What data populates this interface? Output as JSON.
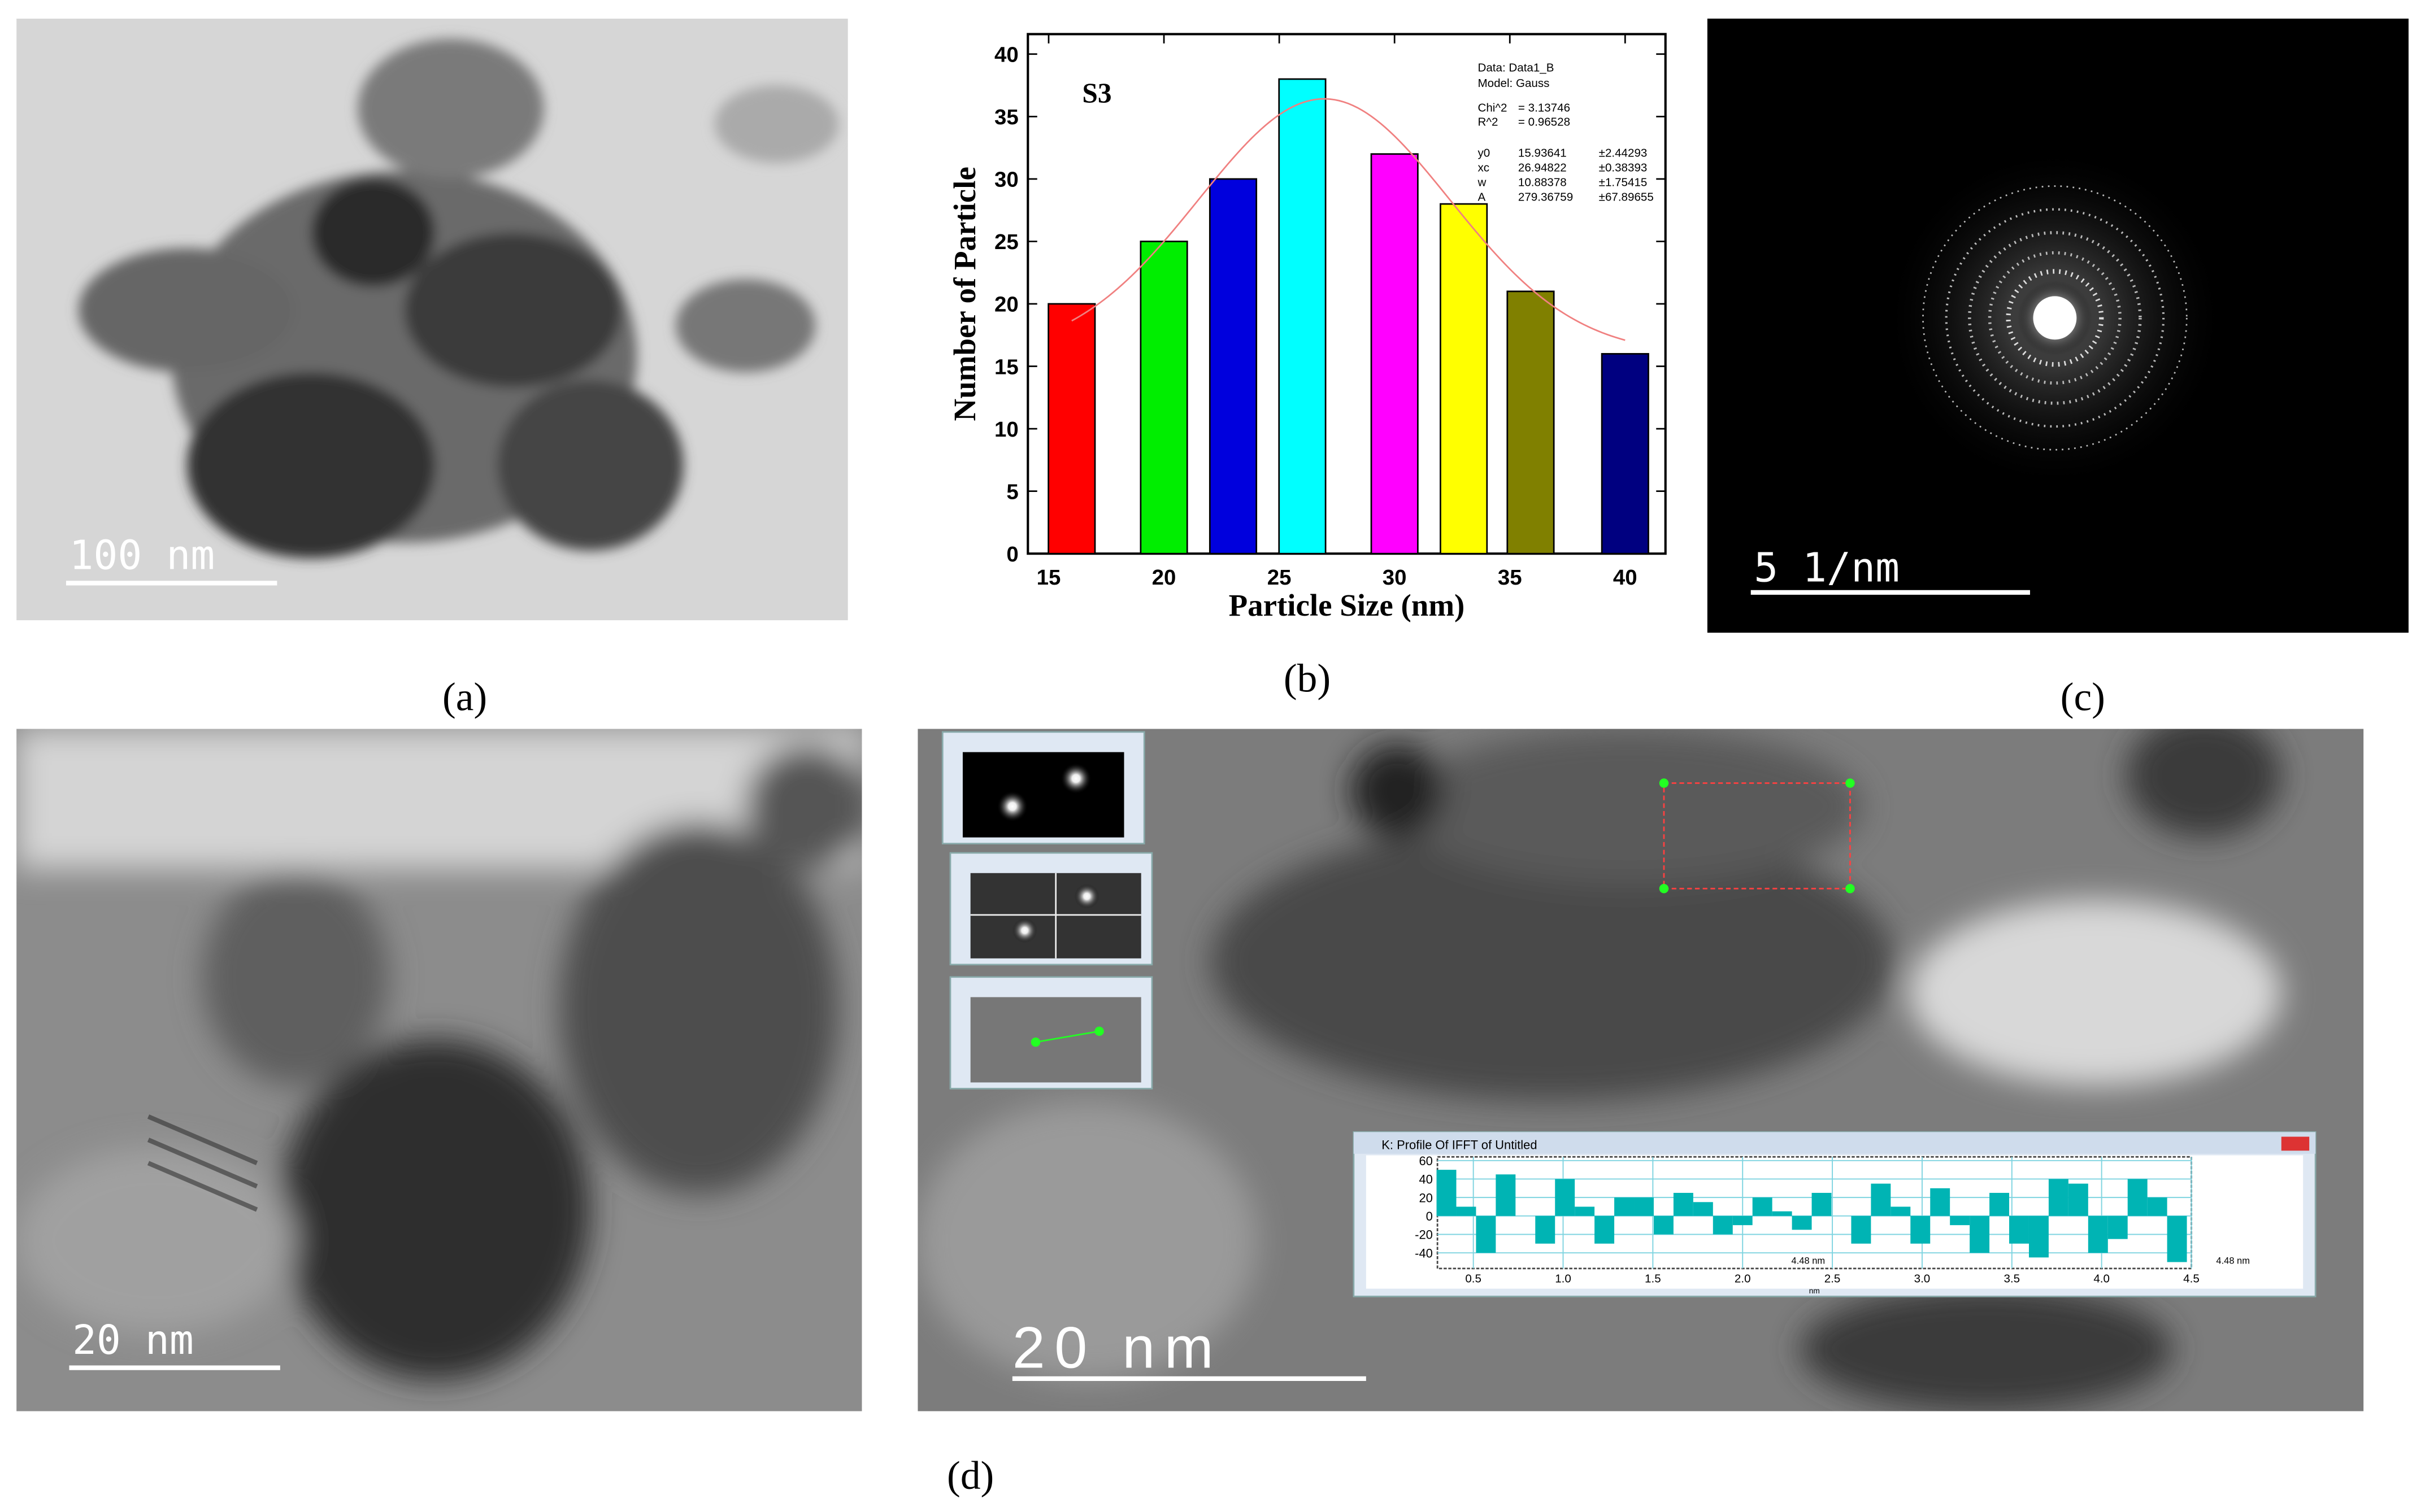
{
  "panels": {
    "a": {
      "label": "(a)",
      "scale_bar": "100 nm"
    },
    "b": {
      "label": "(b)"
    },
    "c": {
      "label": "(c)",
      "scale_bar": "5 1/nm"
    },
    "d": {
      "label": "(d)",
      "left_scale_bar": "20 nm",
      "right_scale_bar": "20 nm"
    }
  },
  "chart_data": [
    {
      "type": "bar",
      "sample": "S3",
      "x_label": "Particle Size (nm)",
      "y_label": "Number of Particle",
      "x": [
        16,
        20,
        23,
        26,
        30,
        33,
        35.9,
        40
      ],
      "values": [
        20,
        25,
        30,
        38,
        32,
        28,
        21,
        16
      ],
      "colors": [
        "#ff0000",
        "#00ee00",
        "#0000dd",
        "#00ffff",
        "#ff00ff",
        "#ffff00",
        "#808000",
        "#000080"
      ],
      "xlim": [
        14.1,
        41.75
      ],
      "ylim": [
        0,
        41.6
      ],
      "xticks": [
        15,
        20,
        25,
        30,
        35,
        40
      ],
      "yticks": [
        0,
        5,
        10,
        15,
        20,
        25,
        30,
        35,
        40
      ],
      "fit_info": [
        "Data: Data1_B",
        "Model: Gauss"
      ],
      "fit_stats": [
        {
          "name": "Chi^2",
          "value": "= 3.13746"
        },
        {
          "name": "R^2",
          "value": "= 0.96528"
        }
      ],
      "fit_params": [
        {
          "name": "y0",
          "value": 15.93641,
          "error": "±2.44293"
        },
        {
          "name": "xc",
          "value": 26.94822,
          "error": "±0.38393"
        },
        {
          "name": "w",
          "value": 10.88378,
          "error": "±1.75415"
        },
        {
          "name": "A",
          "value": 279.36759,
          "error": "±67.89655"
        }
      ],
      "fit_range": [
        16,
        40
      ],
      "fit_color": "#f08080"
    },
    {
      "type": "step",
      "title": "K: Profile Of IFFT of Untitled",
      "x_label": "nm",
      "annotations": [
        "4.48 nm",
        "4.48 nm"
      ],
      "color": "#00b4b4",
      "x": [
        0.35,
        0.46,
        0.57,
        0.68,
        0.79,
        0.9,
        1.01,
        1.12,
        1.23,
        1.34,
        1.45,
        1.56,
        1.67,
        1.78,
        1.89,
        2,
        2.11,
        2.22,
        2.33,
        2.44,
        2.55,
        2.66,
        2.77,
        2.88,
        2.99,
        3.1,
        3.21,
        3.32,
        3.43,
        3.54,
        3.65,
        3.76,
        3.87,
        3.98,
        4.09,
        4.2,
        4.31,
        4.42
      ],
      "values": [
        50,
        10,
        -40,
        45,
        0,
        -30,
        40,
        10,
        -30,
        20,
        20,
        -20,
        25,
        15,
        -20,
        -10,
        20,
        5,
        -15,
        25,
        0,
        -30,
        35,
        10,
        -30,
        30,
        -10,
        -40,
        25,
        -30,
        -45,
        40,
        35,
        -40,
        -25,
        40,
        20,
        -50
      ],
      "xlim": [
        0.3,
        4.5
      ],
      "ylim": [
        -57,
        64
      ],
      "xticks": [
        {
          "value": 0.5,
          "label": "0.5"
        },
        {
          "value": 1,
          "label": "1.0"
        },
        {
          "value": 1.5,
          "label": "1.5"
        },
        {
          "value": 2,
          "label": "2.0"
        },
        {
          "value": 2.5,
          "label": "2.5"
        },
        {
          "value": 3,
          "label": "3.0"
        },
        {
          "value": 3.5,
          "label": "3.5"
        },
        {
          "value": 4,
          "label": "4.0"
        },
        {
          "value": 4.5,
          "label": "4.5"
        }
      ],
      "yticks": [
        60,
        40,
        20,
        0,
        -20,
        -40
      ],
      "grid": true
    }
  ]
}
